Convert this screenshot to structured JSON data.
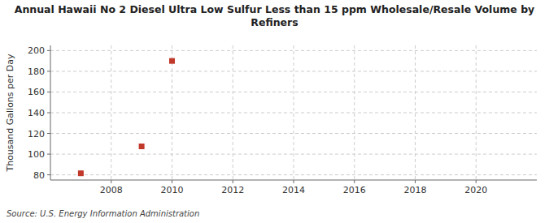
{
  "chart_data": {
    "type": "scatter",
    "title": "Annual Hawaii No 2 Diesel Ultra Low Sulfur Less than 15 ppm Wholesale/Resale Volume by\nRefiners",
    "y_label": "Thousand Gallons per Day",
    "annotations": [
      "Source: U.S. Energy Information Administration"
    ],
    "x": [
      2007,
      2009,
      2010
    ],
    "values": [
      81.5,
      107.5,
      190.0
    ],
    "color": "#c0392b",
    "marker": "square",
    "xlim": [
      2006.0,
      2022.0
    ],
    "ylim": [
      75,
      205
    ],
    "xticks": [
      2008,
      2010,
      2012,
      2014,
      2016,
      2018,
      2020
    ],
    "yticks": [
      80,
      100,
      120,
      140,
      160,
      180,
      200
    ],
    "grid": true
  }
}
